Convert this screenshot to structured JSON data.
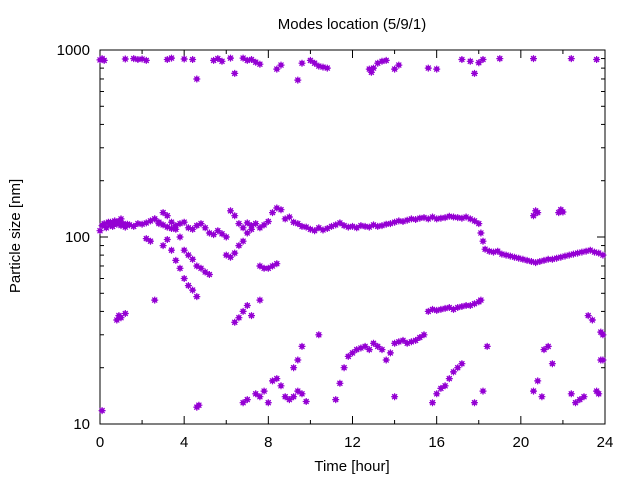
{
  "chart_data": {
    "type": "scatter",
    "title": "Modes location (5/9/1)",
    "xlabel": "Time [hour]",
    "ylabel": "Particle size [nm]",
    "xlim": [
      0,
      24
    ],
    "ylim": [
      10,
      1000
    ],
    "yscale": "log",
    "x_ticks": [
      "0",
      "4",
      "8",
      "12",
      "16",
      "20",
      "24"
    ],
    "y_ticks": [
      "10",
      "100",
      "1000"
    ],
    "grid": false,
    "legend": "none",
    "marker_color": "#9400D3",
    "series": [
      {
        "values": [
          [
            0.0,
            108
          ],
          [
            0.1,
            115
          ],
          [
            0.2,
            118
          ],
          [
            0.3,
            112
          ],
          [
            0.4,
            120
          ],
          [
            0.5,
            116
          ],
          [
            0.6,
            114
          ],
          [
            0.7,
            119
          ],
          [
            0.8,
            117
          ],
          [
            0.9,
            121
          ],
          [
            1.0,
            115
          ],
          [
            1.1,
            118
          ],
          [
            1.2,
            113
          ],
          [
            1.3,
            117
          ],
          [
            1.4,
            116
          ],
          [
            1.6,
            114
          ],
          [
            1.8,
            118
          ],
          [
            2.0,
            117
          ],
          [
            2.2,
            119
          ],
          [
            2.4,
            122
          ],
          [
            2.6,
            125
          ],
          [
            2.8,
            120
          ],
          [
            3.0,
            116
          ],
          [
            3.2,
            113
          ],
          [
            3.4,
            111
          ],
          [
            3.6,
            115
          ],
          [
            3.8,
            118
          ],
          [
            4.0,
            120
          ],
          [
            4.2,
            112
          ],
          [
            4.4,
            110
          ],
          [
            4.6,
            115
          ],
          [
            4.8,
            118
          ],
          [
            5.0,
            112
          ],
          [
            5.2,
            105
          ],
          [
            5.4,
            103
          ],
          [
            5.6,
            108
          ],
          [
            5.8,
            104
          ],
          [
            6.0,
            100
          ],
          [
            6.2,
            138
          ],
          [
            6.4,
            130
          ],
          [
            6.6,
            118
          ],
          [
            6.8,
            112
          ],
          [
            7.0,
            119
          ],
          [
            7.2,
            115
          ],
          [
            7.4,
            118
          ],
          [
            7.6,
            112
          ],
          [
            7.8,
            116
          ],
          [
            8.0,
            121
          ],
          [
            8.2,
            135
          ],
          [
            8.4,
            143
          ],
          [
            8.6,
            140
          ],
          [
            8.8,
            125
          ],
          [
            9.0,
            128
          ],
          [
            9.2,
            120
          ],
          [
            9.4,
            118
          ],
          [
            9.6,
            114
          ],
          [
            9.8,
            113
          ],
          [
            10.0,
            110
          ],
          [
            10.2,
            108
          ],
          [
            10.4,
            112
          ],
          [
            10.6,
            109
          ],
          [
            10.8,
            111
          ],
          [
            11.0,
            114
          ],
          [
            11.2,
            116
          ],
          [
            11.4,
            119
          ],
          [
            11.6,
            115
          ],
          [
            11.8,
            113
          ],
          [
            12.0,
            114
          ],
          [
            12.2,
            112
          ],
          [
            12.4,
            115
          ],
          [
            12.6,
            114
          ],
          [
            12.8,
            113
          ],
          [
            13.0,
            116
          ],
          [
            13.2,
            114
          ],
          [
            13.4,
            115
          ],
          [
            13.6,
            117
          ],
          [
            13.8,
            118
          ],
          [
            14.0,
            120
          ],
          [
            14.2,
            122
          ],
          [
            14.4,
            121
          ],
          [
            14.6,
            123
          ],
          [
            14.8,
            125
          ],
          [
            15.0,
            124
          ],
          [
            15.2,
            126
          ],
          [
            15.4,
            127
          ],
          [
            15.6,
            125
          ],
          [
            15.8,
            128
          ],
          [
            16.0,
            125
          ],
          [
            16.2,
            126
          ],
          [
            16.4,
            127
          ],
          [
            16.6,
            129
          ],
          [
            16.8,
            128
          ],
          [
            17.0,
            127
          ],
          [
            17.2,
            126
          ],
          [
            17.4,
            128
          ],
          [
            17.6,
            125
          ],
          [
            17.8,
            122
          ],
          [
            18.0,
            118
          ],
          [
            18.1,
            105
          ],
          [
            18.2,
            95
          ],
          [
            18.3,
            86
          ],
          [
            18.5,
            84
          ],
          [
            18.7,
            83
          ],
          [
            18.9,
            84
          ],
          [
            19.1,
            81
          ],
          [
            19.3,
            80
          ],
          [
            19.5,
            79
          ],
          [
            19.7,
            78
          ],
          [
            19.9,
            77
          ],
          [
            20.1,
            76
          ],
          [
            20.3,
            75
          ],
          [
            20.5,
            74
          ],
          [
            20.7,
            73
          ],
          [
            20.9,
            74
          ],
          [
            21.1,
            75
          ],
          [
            21.3,
            76
          ],
          [
            21.5,
            76
          ],
          [
            21.7,
            77
          ],
          [
            21.9,
            78
          ],
          [
            22.1,
            79
          ],
          [
            22.3,
            80
          ],
          [
            22.5,
            81
          ],
          [
            22.7,
            82
          ],
          [
            22.9,
            83
          ],
          [
            23.1,
            84
          ],
          [
            23.3,
            85
          ],
          [
            23.5,
            83
          ],
          [
            23.7,
            82
          ],
          [
            23.9,
            80
          ],
          [
            0.0,
            885
          ],
          [
            0.1,
            900
          ],
          [
            0.2,
            880
          ],
          [
            1.2,
            895
          ],
          [
            1.6,
            900
          ],
          [
            1.8,
            890
          ],
          [
            2.0,
            895
          ],
          [
            2.2,
            880
          ],
          [
            3.2,
            890
          ],
          [
            3.4,
            905
          ],
          [
            4.0,
            895
          ],
          [
            4.4,
            890
          ],
          [
            4.6,
            700
          ],
          [
            5.4,
            880
          ],
          [
            5.6,
            900
          ],
          [
            5.8,
            870
          ],
          [
            6.2,
            905
          ],
          [
            6.4,
            750
          ],
          [
            6.8,
            905
          ],
          [
            7.0,
            880
          ],
          [
            7.2,
            890
          ],
          [
            7.4,
            860
          ],
          [
            7.6,
            840
          ],
          [
            8.4,
            790
          ],
          [
            8.6,
            830
          ],
          [
            9.4,
            690
          ],
          [
            9.6,
            850
          ],
          [
            10.0,
            880
          ],
          [
            10.2,
            850
          ],
          [
            10.4,
            820
          ],
          [
            10.6,
            810
          ],
          [
            10.8,
            800
          ],
          [
            12.8,
            790
          ],
          [
            12.9,
            760
          ],
          [
            13.0,
            800
          ],
          [
            13.2,
            850
          ],
          [
            13.4,
            870
          ],
          [
            13.6,
            880
          ],
          [
            14.0,
            790
          ],
          [
            14.2,
            830
          ],
          [
            15.6,
            800
          ],
          [
            16.0,
            790
          ],
          [
            17.2,
            890
          ],
          [
            17.6,
            870
          ],
          [
            17.8,
            750
          ],
          [
            18.0,
            855
          ],
          [
            18.2,
            890
          ],
          [
            19.0,
            900
          ],
          [
            20.6,
            900
          ],
          [
            22.4,
            900
          ],
          [
            23.6,
            890
          ],
          [
            0.5,
            120
          ],
          [
            0.7,
            122
          ],
          [
            1.0,
            125
          ],
          [
            2.6,
            125
          ],
          [
            2.8,
            118
          ],
          [
            3.0,
            135
          ],
          [
            3.2,
            130
          ],
          [
            3.4,
            120
          ],
          [
            3.6,
            110
          ],
          [
            3.8,
            100
          ],
          [
            4.0,
            85
          ],
          [
            4.2,
            80
          ],
          [
            4.4,
            76
          ],
          [
            4.6,
            70
          ],
          [
            4.8,
            68
          ],
          [
            5.0,
            65
          ],
          [
            5.2,
            63
          ],
          [
            2.2,
            98
          ],
          [
            2.4,
            95
          ],
          [
            3.0,
            90
          ],
          [
            3.2,
            97
          ],
          [
            3.4,
            85
          ],
          [
            3.6,
            75
          ],
          [
            3.8,
            68
          ],
          [
            4.0,
            60
          ],
          [
            4.2,
            55
          ],
          [
            4.4,
            52
          ],
          [
            4.6,
            48
          ],
          [
            2.6,
            46
          ],
          [
            6.0,
            80
          ],
          [
            6.2,
            78
          ],
          [
            6.4,
            82
          ],
          [
            6.6,
            90
          ],
          [
            6.8,
            95
          ],
          [
            7.0,
            105
          ],
          [
            7.2,
            110
          ],
          [
            7.6,
            70
          ],
          [
            7.8,
            68
          ],
          [
            8.0,
            68
          ],
          [
            8.2,
            70
          ],
          [
            8.4,
            72
          ],
          [
            6.4,
            35
          ],
          [
            6.6,
            37
          ],
          [
            6.8,
            40
          ],
          [
            7.0,
            43
          ],
          [
            7.2,
            38
          ],
          [
            7.6,
            46
          ],
          [
            0.8,
            36
          ],
          [
            1.0,
            37
          ],
          [
            1.2,
            39
          ],
          [
            0.9,
            38
          ],
          [
            4.6,
            12.3
          ],
          [
            4.7,
            12.6
          ],
          [
            0.1,
            11.8
          ],
          [
            6.8,
            13
          ],
          [
            7.0,
            13.5
          ],
          [
            7.4,
            14.5
          ],
          [
            7.6,
            14
          ],
          [
            7.8,
            15
          ],
          [
            8.0,
            13
          ],
          [
            8.2,
            17
          ],
          [
            8.4,
            17.5
          ],
          [
            8.6,
            16
          ],
          [
            8.8,
            14
          ],
          [
            9.0,
            13.5
          ],
          [
            9.2,
            14
          ],
          [
            9.4,
            15
          ],
          [
            9.6,
            14.5
          ],
          [
            9.8,
            13.2
          ],
          [
            9.2,
            20
          ],
          [
            9.4,
            22
          ],
          [
            9.6,
            26
          ],
          [
            10.4,
            30
          ],
          [
            11.2,
            13.5
          ],
          [
            11.4,
            16.5
          ],
          [
            11.6,
            20
          ],
          [
            11.8,
            23
          ],
          [
            12.0,
            24
          ],
          [
            12.2,
            25
          ],
          [
            12.4,
            25.5
          ],
          [
            12.6,
            26
          ],
          [
            12.8,
            25
          ],
          [
            13.0,
            27
          ],
          [
            13.2,
            26
          ],
          [
            13.4,
            25
          ],
          [
            13.6,
            22
          ],
          [
            13.8,
            24
          ],
          [
            14.0,
            27
          ],
          [
            14.2,
            27.5
          ],
          [
            14.4,
            28
          ],
          [
            14.6,
            27
          ],
          [
            14.8,
            27.5
          ],
          [
            15.0,
            28
          ],
          [
            15.2,
            29
          ],
          [
            15.4,
            30
          ],
          [
            14.0,
            14
          ],
          [
            15.8,
            13
          ],
          [
            16.0,
            14.5
          ],
          [
            16.2,
            15.5
          ],
          [
            16.4,
            16
          ],
          [
            16.6,
            17.5
          ],
          [
            16.8,
            19
          ],
          [
            17.0,
            20
          ],
          [
            17.2,
            21
          ],
          [
            17.8,
            13
          ],
          [
            18.2,
            15
          ],
          [
            18.4,
            26
          ],
          [
            15.6,
            40
          ],
          [
            15.8,
            41
          ],
          [
            16.0,
            40.5
          ],
          [
            16.2,
            41
          ],
          [
            16.4,
            41.5
          ],
          [
            16.6,
            42
          ],
          [
            16.8,
            41
          ],
          [
            17.0,
            42
          ],
          [
            17.2,
            42.5
          ],
          [
            17.4,
            43
          ],
          [
            17.6,
            43
          ],
          [
            17.8,
            44
          ],
          [
            18.0,
            45
          ],
          [
            18.1,
            46
          ],
          [
            20.6,
            130
          ],
          [
            20.7,
            138
          ],
          [
            20.8,
            135
          ],
          [
            21.8,
            135
          ],
          [
            21.9,
            140
          ],
          [
            22.0,
            136
          ],
          [
            20.8,
            17
          ],
          [
            21.0,
            14
          ],
          [
            21.1,
            25
          ],
          [
            21.3,
            26
          ],
          [
            21.5,
            21
          ],
          [
            22.4,
            14.5
          ],
          [
            22.6,
            13
          ],
          [
            22.8,
            13.5
          ],
          [
            23.0,
            14
          ],
          [
            23.2,
            38
          ],
          [
            23.4,
            36
          ],
          [
            23.6,
            15
          ],
          [
            23.7,
            14.5
          ],
          [
            23.8,
            22
          ],
          [
            23.9,
            22
          ],
          [
            23.8,
            31
          ],
          [
            23.9,
            30
          ],
          [
            20.6,
            15
          ]
        ]
      }
    ]
  }
}
